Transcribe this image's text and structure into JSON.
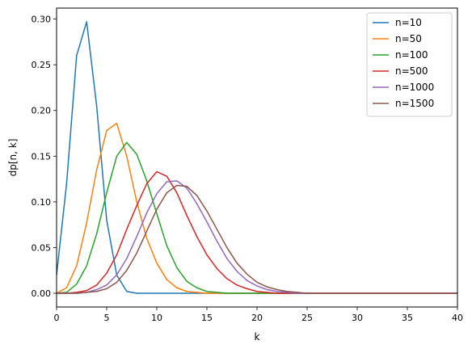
{
  "chart_data": {
    "type": "line",
    "title": "",
    "xlabel": "k",
    "ylabel": "dp[n, k]",
    "xlim": [
      0,
      40
    ],
    "ylim": [
      -0.015,
      0.312
    ],
    "xticks": [
      0,
      5,
      10,
      15,
      20,
      25,
      30,
      35,
      40
    ],
    "xtick_labels": [
      "0",
      "5",
      "10",
      "15",
      "20",
      "25",
      "30",
      "35",
      "40"
    ],
    "yticks": [
      0.0,
      0.05,
      0.1,
      0.15,
      0.2,
      0.25,
      0.3
    ],
    "ytick_labels": [
      "0.00",
      "0.05",
      "0.10",
      "0.15",
      "0.20",
      "0.25",
      "0.30"
    ],
    "grid": false,
    "legend_position": "top-right",
    "x": [
      0,
      1,
      2,
      3,
      4,
      5,
      6,
      7,
      8,
      9,
      10,
      11,
      12,
      13,
      14,
      15,
      16,
      17,
      18,
      19,
      20,
      21,
      22,
      23,
      24,
      25,
      26,
      27,
      28,
      29,
      30,
      31,
      32,
      33,
      34,
      35,
      36,
      37,
      38,
      39,
      40
    ],
    "series": [
      {
        "name": "n=10",
        "color": "#1f77b4",
        "values": [
          0.02,
          0.12,
          0.26,
          0.297,
          0.205,
          0.08,
          0.02,
          0.002,
          0,
          0,
          0,
          0,
          0,
          0,
          0,
          0,
          0,
          0,
          0,
          0,
          0,
          0,
          0,
          0,
          0,
          0,
          0,
          0,
          0,
          0,
          0,
          0,
          0,
          0,
          0,
          0,
          0,
          0,
          0,
          0,
          0
        ]
      },
      {
        "name": "n=50",
        "color": "#ff7f0e",
        "values": [
          0,
          0.006,
          0.03,
          0.077,
          0.135,
          0.178,
          0.186,
          0.15,
          0.1,
          0.06,
          0.033,
          0.015,
          0.006,
          0.002,
          0.001,
          0,
          0,
          0,
          0,
          0,
          0,
          0,
          0,
          0,
          0,
          0,
          0,
          0,
          0,
          0,
          0,
          0,
          0,
          0,
          0,
          0,
          0,
          0,
          0,
          0,
          0
        ]
      },
      {
        "name": "n=100",
        "color": "#2ca02c",
        "values": [
          0,
          0.001,
          0.01,
          0.03,
          0.065,
          0.11,
          0.15,
          0.165,
          0.152,
          0.123,
          0.087,
          0.052,
          0.028,
          0.013,
          0.006,
          0.002,
          0.001,
          0,
          0,
          0,
          0,
          0,
          0,
          0,
          0,
          0,
          0,
          0,
          0,
          0,
          0,
          0,
          0,
          0,
          0,
          0,
          0,
          0,
          0,
          0,
          0
        ]
      },
      {
        "name": "n=500",
        "color": "#d62728",
        "values": [
          0,
          0,
          0.001,
          0.003,
          0.009,
          0.022,
          0.042,
          0.07,
          0.096,
          0.12,
          0.133,
          0.128,
          0.11,
          0.085,
          0.062,
          0.042,
          0.027,
          0.016,
          0.009,
          0.005,
          0.002,
          0.001,
          0,
          0,
          0,
          0,
          0,
          0,
          0,
          0,
          0,
          0,
          0,
          0,
          0,
          0,
          0,
          0,
          0,
          0,
          0
        ]
      },
      {
        "name": "n=1000",
        "color": "#9467bd",
        "values": [
          0,
          0,
          0,
          0.001,
          0.004,
          0.009,
          0.02,
          0.038,
          0.062,
          0.088,
          0.109,
          0.122,
          0.123,
          0.115,
          0.098,
          0.078,
          0.057,
          0.038,
          0.024,
          0.014,
          0.008,
          0.004,
          0.002,
          0.001,
          0,
          0,
          0,
          0,
          0,
          0,
          0,
          0,
          0,
          0,
          0,
          0,
          0,
          0,
          0,
          0,
          0
        ]
      },
      {
        "name": "n=1500",
        "color": "#8c564b",
        "values": [
          0,
          0,
          0,
          0.001,
          0.002,
          0.005,
          0.012,
          0.025,
          0.044,
          0.068,
          0.092,
          0.11,
          0.118,
          0.117,
          0.107,
          0.09,
          0.07,
          0.05,
          0.033,
          0.021,
          0.012,
          0.007,
          0.004,
          0.002,
          0.001,
          0,
          0,
          0,
          0,
          0,
          0,
          0,
          0,
          0,
          0,
          0,
          0,
          0,
          0,
          0,
          0
        ]
      }
    ]
  }
}
